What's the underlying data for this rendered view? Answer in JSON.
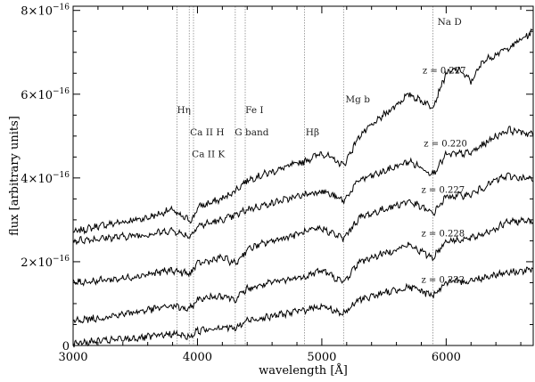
{
  "chart_data": {
    "type": "line",
    "title": "",
    "xlabel": "wavelength [Å]",
    "ylabel": "flux [arbitrary units]",
    "xlim": [
      3000,
      6700
    ],
    "ylim": [
      0,
      8.1e-16
    ],
    "grid": false,
    "legend": "none",
    "x_ticks": [
      3000,
      4000,
      5000,
      6000
    ],
    "x_tick_labels": [
      "3000",
      "4000",
      "5000",
      "6000"
    ],
    "y_ticks": [
      0,
      2e-16,
      4e-16,
      6e-16,
      8e-16
    ],
    "y_tick_labels": [
      {
        "base": "0",
        "exp": ""
      },
      {
        "base": "2×10",
        "exp": "−16"
      },
      {
        "base": "4×10",
        "exp": "−16"
      },
      {
        "base": "6×10",
        "exp": "−16"
      },
      {
        "base": "8×10",
        "exp": "−16"
      }
    ],
    "lines": [
      {
        "name": "Hη",
        "wavelength": 3835
      },
      {
        "name": "Ca II K",
        "wavelength": 3934
      },
      {
        "name": "Ca II H",
        "wavelength": 3968
      },
      {
        "name": "Fe I",
        "wavelength": 4384
      },
      {
        "name": "G band",
        "wavelength": 4304
      },
      {
        "name": "Hβ",
        "wavelength": 4861
      },
      {
        "name": "Mg b",
        "wavelength": 5175
      },
      {
        "name": "Na D",
        "wavelength": 5893
      }
    ],
    "line_labels": [
      {
        "text": "Hη",
        "wavelength": 3835,
        "flux": 5.55e-16
      },
      {
        "text": "Ca II H",
        "wavelength": 3940,
        "flux": 5.02e-16
      },
      {
        "text": "Ca II K",
        "wavelength": 3955,
        "flux": 4.5e-16
      },
      {
        "text": "Fe I",
        "wavelength": 4385,
        "flux": 5.55e-16
      },
      {
        "text": "G band",
        "wavelength": 4300,
        "flux": 5.02e-16
      },
      {
        "text": "Hβ",
        "wavelength": 4870,
        "flux": 5.02e-16
      },
      {
        "text": "Mg b",
        "wavelength": 5190,
        "flux": 5.8e-16
      },
      {
        "text": "Na D",
        "wavelength": 5930,
        "flux": 7.65e-16
      }
    ],
    "series": [
      {
        "name": "z = 0.227",
        "label_position": {
          "wavelength": 5810,
          "flux": 6.5e-16
        },
        "x": [
          3000,
          3200,
          3400,
          3600,
          3800,
          3850,
          3935,
          3970,
          4000,
          4200,
          4304,
          4400,
          4600,
          4861,
          5000,
          5175,
          5300,
          5500,
          5700,
          5893,
          6000,
          6100,
          6200,
          6300,
          6500,
          6700
        ],
        "y": [
          2.7e-16,
          2.85e-16,
          2.95e-16,
          3.05e-16,
          3.25e-16,
          3.1e-16,
          3e-16,
          3.05e-16,
          3.3e-16,
          3.5e-16,
          3.7e-16,
          3.95e-16,
          4.15e-16,
          4.4e-16,
          4.6e-16,
          4.3e-16,
          5e-16,
          5.5e-16,
          6e-16,
          5.7e-16,
          6.5e-16,
          6.6e-16,
          6.3e-16,
          6.8e-16,
          7.1e-16,
          7.5e-16
        ]
      },
      {
        "name": "z = 0.220",
        "label_position": {
          "wavelength": 5820,
          "flux": 4.75e-16
        },
        "x": [
          3000,
          3200,
          3400,
          3600,
          3800,
          3935,
          4000,
          4200,
          4304,
          4400,
          4600,
          4861,
          5000,
          5175,
          5300,
          5500,
          5700,
          5893,
          6000,
          6200,
          6400,
          6500,
          6700
        ],
        "y": [
          2.5e-16,
          2.55e-16,
          2.6e-16,
          2.65e-16,
          2.75e-16,
          2.6e-16,
          2.85e-16,
          3e-16,
          3.1e-16,
          3.25e-16,
          3.4e-16,
          3.6e-16,
          3.7e-16,
          3.45e-16,
          3.95e-16,
          4.15e-16,
          4.4e-16,
          4.1e-16,
          4.55e-16,
          4.6e-16,
          5e-16,
          5.15e-16,
          5.05e-16
        ]
      },
      {
        "name": "z = 0.227",
        "label_position": {
          "wavelength": 5800,
          "flux": 3.65e-16
        },
        "x": [
          3000,
          3200,
          3400,
          3600,
          3800,
          3935,
          4000,
          4200,
          4304,
          4400,
          4600,
          4861,
          5000,
          5175,
          5300,
          5500,
          5700,
          5893,
          6000,
          6200,
          6400,
          6500,
          6700
        ],
        "y": [
          1.5e-16,
          1.55e-16,
          1.6e-16,
          1.7e-16,
          1.8e-16,
          1.7e-16,
          1.95e-16,
          2.1e-16,
          1.95e-16,
          2.3e-16,
          2.5e-16,
          2.7e-16,
          2.8e-16,
          2.55e-16,
          3.05e-16,
          3.25e-16,
          3.45e-16,
          3.15e-16,
          3.55e-16,
          3.6e-16,
          3.95e-16,
          4.05e-16,
          3.95e-16
        ]
      },
      {
        "name": "z = 0.228",
        "label_position": {
          "wavelength": 5800,
          "flux": 2.6e-16
        },
        "x": [
          3000,
          3200,
          3400,
          3600,
          3800,
          3935,
          4000,
          4200,
          4304,
          4400,
          4600,
          4861,
          5000,
          5175,
          5300,
          5500,
          5700,
          5893,
          6000,
          6200,
          6400,
          6500,
          6700
        ],
        "y": [
          6e-17,
          6.5e-17,
          7.5e-17,
          8.5e-17,
          9.5e-17,
          8.5e-17,
          1.1e-16,
          1.2e-16,
          1.1e-16,
          1.35e-16,
          1.5e-16,
          1.65e-16,
          1.8e-16,
          1.5e-16,
          2e-16,
          2.2e-16,
          2.4e-16,
          2.1e-16,
          2.5e-16,
          2.55e-16,
          2.8e-16,
          2.95e-16,
          3e-16
        ]
      },
      {
        "name": "z = 0.222",
        "label_position": {
          "wavelength": 5800,
          "flux": 1.5e-16
        },
        "x": [
          3000,
          3200,
          3400,
          3600,
          3800,
          3935,
          4000,
          4200,
          4304,
          4400,
          4600,
          4861,
          5000,
          5175,
          5300,
          5500,
          5700,
          5893,
          6000,
          6200,
          6400,
          6500,
          6700
        ],
        "y": [
          5e-18,
          1e-17,
          1.5e-17,
          2e-17,
          2.8e-17,
          2e-17,
          3.5e-17,
          4.5e-17,
          4e-17,
          6e-17,
          7e-17,
          8.5e-17,
          9.5e-17,
          7.5e-17,
          1.1e-16,
          1.25e-16,
          1.4e-16,
          1.2e-16,
          1.5e-16,
          1.55e-16,
          1.7e-16,
          1.75e-16,
          1.8e-16
        ]
      }
    ]
  }
}
